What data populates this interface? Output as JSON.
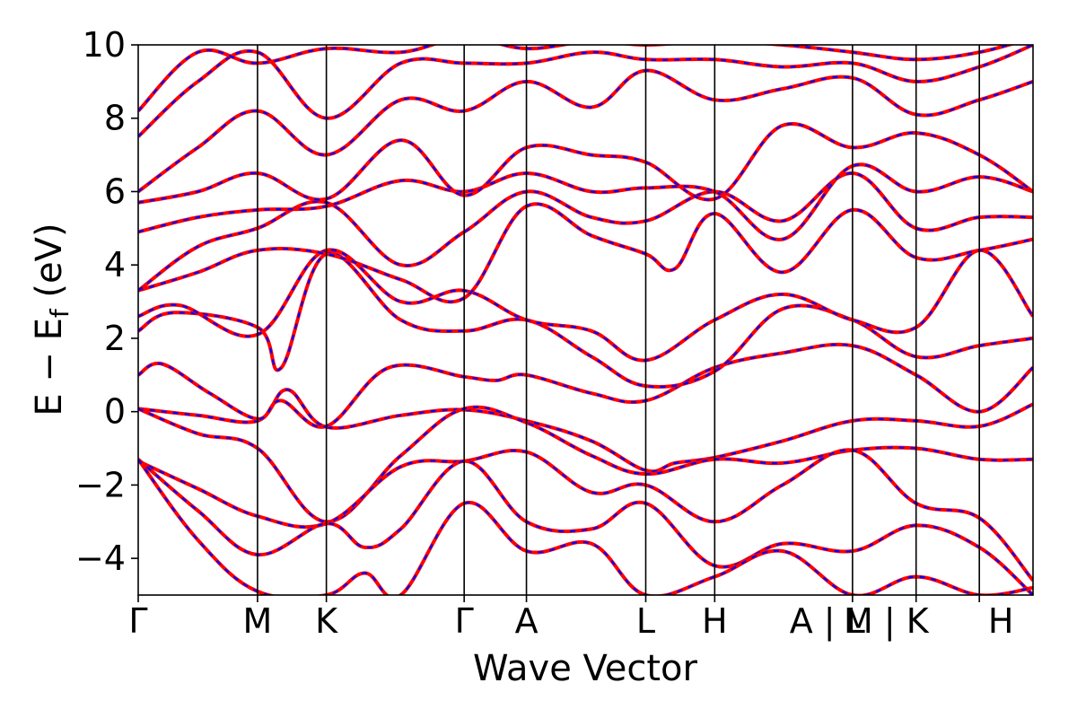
{
  "chart_data": {
    "type": "line",
    "xlabel": "Wave Vector",
    "ylabel_parts": {
      "main": "E − E",
      "sub": "f",
      "unit": " (eV)"
    },
    "ylim": [
      -5,
      10
    ],
    "yticks": [
      -4,
      -2,
      0,
      2,
      4,
      6,
      8,
      10
    ],
    "ytick_labels": [
      "−4",
      "−2",
      "0",
      "2",
      "4",
      "6",
      "8",
      "10"
    ],
    "kpath": [
      0,
      1.0,
      1.577,
      2.732,
      3.254,
      4.254,
      4.832,
      5.987,
      6.52,
      7.05,
      7.5
    ],
    "high_symmetry_labels": [
      "Γ",
      "M",
      "K",
      "Γ",
      "A",
      "L",
      "H",
      "A | L",
      "M | K",
      "H"
    ],
    "high_symmetry_x": [
      0,
      1.0,
      1.577,
      2.732,
      3.254,
      4.254,
      4.832,
      5.987,
      6.52,
      7.05
    ],
    "label_end_x": 7.08,
    "series_colors": {
      "band_solid": "#ff0000",
      "band_dashed": "#0000ff",
      "axes": "#000000"
    },
    "series": [
      {
        "name": "",
        "nodes": [
          [
            0,
            0.08
          ],
          [
            0.5,
            -0.1
          ],
          [
            1.0,
            -0.25
          ],
          [
            1.25,
            0.6
          ],
          [
            1.577,
            -0.42
          ],
          [
            2.2,
            -0.1
          ],
          [
            2.732,
            0.05
          ],
          [
            3.254,
            -0.25
          ],
          [
            3.8,
            -0.8
          ],
          [
            4.254,
            -1.6
          ],
          [
            4.5,
            -1.4
          ],
          [
            4.832,
            -1.25
          ],
          [
            5.4,
            -0.8
          ],
          [
            5.987,
            -0.25
          ],
          [
            6.52,
            -0.25
          ],
          [
            7.05,
            -0.4
          ],
          [
            7.5,
            0.2
          ]
        ]
      },
      {
        "name": "",
        "nodes": [
          [
            0,
            0.08
          ],
          [
            0.5,
            -0.6
          ],
          [
            1.0,
            -1.0
          ],
          [
            1.577,
            -3.0
          ],
          [
            2.2,
            -1.2
          ],
          [
            2.732,
            0.08
          ],
          [
            3.254,
            -0.3
          ],
          [
            3.8,
            -1.2
          ],
          [
            4.254,
            -1.7
          ],
          [
            4.832,
            -1.3
          ],
          [
            5.4,
            -1.4
          ],
          [
            5.987,
            -1.05
          ],
          [
            6.52,
            -1.0
          ],
          [
            7.05,
            -1.3
          ],
          [
            7.5,
            -1.3
          ]
        ]
      },
      {
        "name": "",
        "nodes": [
          [
            0,
            -1.35
          ],
          [
            0.5,
            -2.1
          ],
          [
            1.0,
            -2.85
          ],
          [
            1.577,
            -3.05
          ],
          [
            2.2,
            -1.5
          ],
          [
            2.732,
            -1.35
          ],
          [
            3.254,
            -1.1
          ],
          [
            3.8,
            -2.2
          ],
          [
            4.254,
            -2.0
          ],
          [
            4.832,
            -3.0
          ],
          [
            5.4,
            -2.0
          ],
          [
            5.987,
            -1.05
          ],
          [
            6.52,
            -2.5
          ],
          [
            7.05,
            -2.9
          ],
          [
            7.5,
            -4.6
          ]
        ]
      },
      {
        "name": "",
        "nodes": [
          [
            0,
            -1.3
          ],
          [
            0.5,
            -2.7
          ],
          [
            1.0,
            -3.9
          ],
          [
            1.577,
            -3.05
          ],
          [
            1.9,
            -3.7
          ],
          [
            2.2,
            -3.2
          ],
          [
            2.732,
            -1.35
          ],
          [
            3.254,
            -3.0
          ],
          [
            3.8,
            -3.2
          ],
          [
            4.254,
            -2.5
          ],
          [
            4.832,
            -4.2
          ],
          [
            5.4,
            -3.6
          ],
          [
            5.987,
            -3.8
          ],
          [
            6.52,
            -3.1
          ],
          [
            7.05,
            -3.7
          ],
          [
            7.5,
            -5.0
          ]
        ]
      },
      {
        "name": "",
        "nodes": [
          [
            0,
            -1.3
          ],
          [
            0.5,
            -3.5
          ],
          [
            1.0,
            -4.9
          ],
          [
            1.577,
            -5.0
          ],
          [
            1.9,
            -4.4
          ],
          [
            2.2,
            -5.0
          ],
          [
            2.732,
            -2.5
          ],
          [
            3.254,
            -3.8
          ],
          [
            3.8,
            -3.6
          ],
          [
            4.254,
            -5.0
          ],
          [
            4.832,
            -4.5
          ],
          [
            5.4,
            -3.8
          ],
          [
            5.987,
            -5.0
          ],
          [
            6.52,
            -4.5
          ],
          [
            7.05,
            -5.0
          ],
          [
            7.5,
            -4.8
          ]
        ]
      },
      {
        "name": "",
        "nodes": [
          [
            0,
            1.0
          ],
          [
            0.2,
            1.3
          ],
          [
            0.6,
            0.5
          ],
          [
            1.0,
            -0.2
          ],
          [
            1.2,
            0.3
          ],
          [
            1.577,
            -0.4
          ],
          [
            2.1,
            1.2
          ],
          [
            2.732,
            0.95
          ],
          [
            3.0,
            0.85
          ],
          [
            3.254,
            1.0
          ],
          [
            3.8,
            0.5
          ],
          [
            4.254,
            0.3
          ],
          [
            4.832,
            1.2
          ],
          [
            5.4,
            1.6
          ],
          [
            5.987,
            1.8
          ],
          [
            6.52,
            1.0
          ],
          [
            7.05,
            0.0
          ],
          [
            7.5,
            1.2
          ]
        ]
      },
      {
        "name": "",
        "nodes": [
          [
            0,
            2.2
          ],
          [
            0.3,
            2.7
          ],
          [
            1.0,
            2.3
          ],
          [
            1.2,
            1.2
          ],
          [
            1.577,
            4.3
          ],
          [
            2.2,
            2.5
          ],
          [
            2.732,
            2.2
          ],
          [
            3.254,
            2.5
          ],
          [
            3.8,
            1.5
          ],
          [
            4.254,
            0.7
          ],
          [
            4.832,
            1.1
          ],
          [
            5.4,
            2.8
          ],
          [
            5.987,
            2.5
          ],
          [
            6.52,
            1.5
          ],
          [
            7.05,
            1.8
          ],
          [
            7.5,
            2.0
          ]
        ]
      },
      {
        "name": "",
        "nodes": [
          [
            0,
            2.6
          ],
          [
            0.35,
            2.9
          ],
          [
            1.0,
            2.1
          ],
          [
            1.577,
            4.4
          ],
          [
            2.2,
            3.0
          ],
          [
            2.732,
            3.3
          ],
          [
            3.254,
            2.5
          ],
          [
            3.8,
            2.2
          ],
          [
            4.254,
            1.4
          ],
          [
            4.832,
            2.5
          ],
          [
            5.4,
            3.2
          ],
          [
            5.987,
            2.5
          ],
          [
            6.52,
            2.3
          ],
          [
            7.05,
            4.4
          ],
          [
            7.5,
            2.6
          ]
        ]
      },
      {
        "name": "",
        "nodes": [
          [
            0,
            3.3
          ],
          [
            0.5,
            3.8
          ],
          [
            1.0,
            4.4
          ],
          [
            1.577,
            4.3
          ],
          [
            2.2,
            3.6
          ],
          [
            2.732,
            3.1
          ],
          [
            3.254,
            5.6
          ],
          [
            3.8,
            4.8
          ],
          [
            4.254,
            4.3
          ],
          [
            4.5,
            3.9
          ],
          [
            4.832,
            5.4
          ],
          [
            5.4,
            3.8
          ],
          [
            5.987,
            5.5
          ],
          [
            6.52,
            4.2
          ],
          [
            7.05,
            4.4
          ],
          [
            7.5,
            4.7
          ]
        ]
      },
      {
        "name": "",
        "nodes": [
          [
            0,
            3.3
          ],
          [
            0.5,
            4.5
          ],
          [
            1.0,
            5.0
          ],
          [
            1.577,
            5.7
          ],
          [
            2.2,
            4.0
          ],
          [
            2.732,
            4.9
          ],
          [
            3.254,
            6.0
          ],
          [
            3.8,
            5.3
          ],
          [
            4.254,
            5.2
          ],
          [
            4.832,
            6.0
          ],
          [
            5.4,
            5.2
          ],
          [
            5.987,
            6.5
          ],
          [
            6.52,
            5.0
          ],
          [
            7.05,
            5.3
          ],
          [
            7.5,
            5.3
          ]
        ]
      },
      {
        "name": "",
        "nodes": [
          [
            0,
            4.9
          ],
          [
            0.5,
            5.3
          ],
          [
            1.0,
            5.5
          ],
          [
            1.577,
            5.6
          ],
          [
            2.2,
            6.3
          ],
          [
            2.732,
            6.0
          ],
          [
            3.254,
            6.5
          ],
          [
            3.8,
            6.0
          ],
          [
            4.254,
            6.1
          ],
          [
            4.832,
            6.0
          ],
          [
            5.4,
            4.7
          ],
          [
            5.987,
            6.7
          ],
          [
            6.52,
            6.0
          ],
          [
            7.05,
            6.4
          ],
          [
            7.5,
            6.0
          ]
        ]
      },
      {
        "name": "",
        "nodes": [
          [
            0,
            5.7
          ],
          [
            0.5,
            6.0
          ],
          [
            1.0,
            6.5
          ],
          [
            1.577,
            5.8
          ],
          [
            2.2,
            7.4
          ],
          [
            2.732,
            5.9
          ],
          [
            3.254,
            7.2
          ],
          [
            3.8,
            7.0
          ],
          [
            4.254,
            6.8
          ],
          [
            4.832,
            5.8
          ],
          [
            5.4,
            7.8
          ],
          [
            5.987,
            7.2
          ],
          [
            6.52,
            7.6
          ],
          [
            7.05,
            7.0
          ],
          [
            7.5,
            6.0
          ]
        ]
      },
      {
        "name": "",
        "nodes": [
          [
            0,
            6.0
          ],
          [
            0.5,
            7.2
          ],
          [
            1.0,
            8.2
          ],
          [
            1.577,
            7.0
          ],
          [
            2.2,
            8.5
          ],
          [
            2.732,
            8.2
          ],
          [
            3.254,
            9.0
          ],
          [
            3.8,
            8.3
          ],
          [
            4.254,
            9.3
          ],
          [
            4.832,
            8.5
          ],
          [
            5.4,
            8.8
          ],
          [
            5.987,
            9.1
          ],
          [
            6.52,
            8.1
          ],
          [
            7.05,
            8.5
          ],
          [
            7.5,
            9.0
          ]
        ]
      },
      {
        "name": "",
        "nodes": [
          [
            0,
            7.5
          ],
          [
            0.5,
            9.0
          ],
          [
            1.0,
            9.8
          ],
          [
            1.577,
            8.0
          ],
          [
            2.2,
            9.5
          ],
          [
            2.732,
            9.5
          ],
          [
            3.254,
            9.5
          ],
          [
            3.8,
            9.8
          ],
          [
            4.254,
            9.6
          ],
          [
            4.832,
            9.6
          ],
          [
            5.4,
            9.4
          ],
          [
            5.987,
            9.5
          ],
          [
            6.52,
            9.0
          ],
          [
            7.05,
            9.4
          ],
          [
            7.5,
            10.0
          ]
        ]
      },
      {
        "name": "",
        "nodes": [
          [
            0,
            8.2
          ],
          [
            0.5,
            9.8
          ],
          [
            1.0,
            9.5
          ],
          [
            1.577,
            9.9
          ],
          [
            2.2,
            9.8
          ],
          [
            2.732,
            10.2
          ],
          [
            3.254,
            9.9
          ],
          [
            3.8,
            10.1
          ],
          [
            4.254,
            10.0
          ],
          [
            4.832,
            10.1
          ],
          [
            5.4,
            10.0
          ],
          [
            5.987,
            9.8
          ],
          [
            6.52,
            9.6
          ],
          [
            7.05,
            9.8
          ],
          [
            7.5,
            10.2
          ]
        ]
      }
    ]
  }
}
